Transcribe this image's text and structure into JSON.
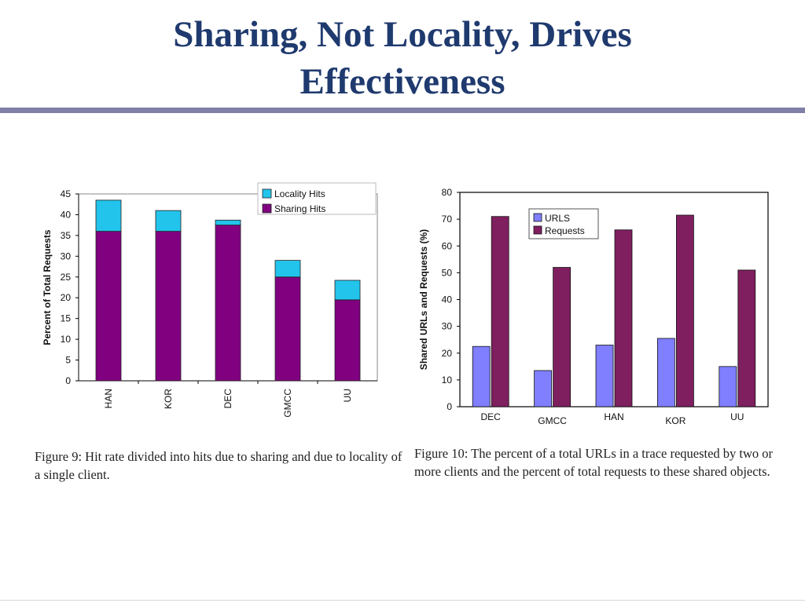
{
  "slide": {
    "title_line1": "Sharing, Not Locality, Drives",
    "title_line2": "Effectiveness"
  },
  "colors": {
    "title": "#1f3a6e",
    "rule": "#7f7fa8",
    "locality_hits": "#22c4ec",
    "sharing_hits": "#80007f",
    "urls": "#7f7fff",
    "requests": "#7f1f5f"
  },
  "captions": {
    "fig9": "Figure 9: Hit rate divided into hits due to sharing and due to locality of a single client.",
    "fig10": "Figure 10: The percent of a total URLs in a trace requested by two or more clients and the percent of total requests to these shared objects."
  },
  "chart_data": [
    {
      "type": "bar",
      "stacked": true,
      "categories": [
        "HAN",
        "KOR",
        "DEC",
        "GMCC",
        "UU"
      ],
      "series": [
        {
          "name": "Sharing Hits",
          "values": [
            36,
            36,
            37.5,
            25,
            19.5
          ]
        },
        {
          "name": "Locality Hits",
          "values": [
            7.5,
            5,
            1.2,
            4,
            4.7
          ]
        }
      ],
      "legend_order": [
        "Locality Hits",
        "Sharing Hits"
      ],
      "ylabel": "Percent of Total Requests",
      "xlabel": "",
      "ylim": [
        0,
        45
      ],
      "yticks": [
        0,
        5,
        10,
        15,
        20,
        25,
        30,
        35,
        40,
        45
      ],
      "legend_position": "top-right",
      "x_tick_rotation": "vertical",
      "grid": false
    },
    {
      "type": "bar",
      "stacked": false,
      "categories": [
        "DEC",
        "GMCC",
        "HAN",
        "KOR",
        "UU"
      ],
      "series": [
        {
          "name": "URLS",
          "values": [
            22.5,
            13.5,
            23,
            25.5,
            15
          ]
        },
        {
          "name": "Requests",
          "values": [
            71,
            52,
            66,
            71.5,
            51
          ]
        }
      ],
      "ylabel": "Shared URLs and Requests (%)",
      "xlabel": "",
      "ylim": [
        0,
        80
      ],
      "yticks": [
        0,
        10,
        20,
        30,
        40,
        50,
        60,
        70,
        80
      ],
      "legend_position": "top-left",
      "grid": false
    }
  ]
}
